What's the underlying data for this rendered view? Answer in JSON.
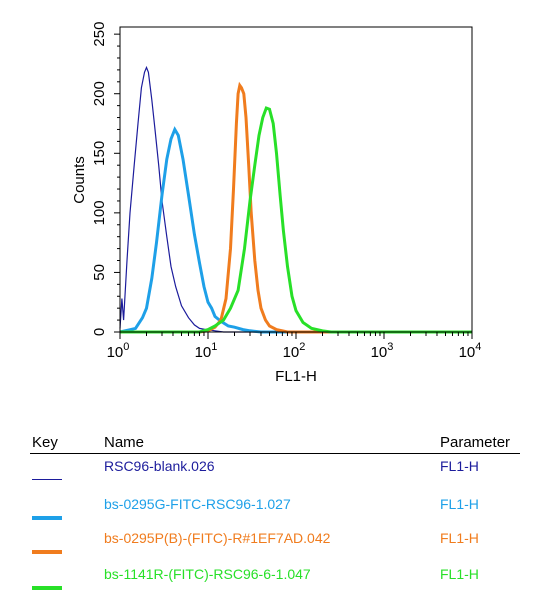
{
  "chart_data": {
    "type": "line",
    "xscale": "log",
    "xlim": [
      1,
      10000
    ],
    "ylim": [
      0,
      256
    ],
    "xlabel": "FL1-H",
    "ylabel": "Counts",
    "xticks": [
      {
        "value": 1,
        "base": "10",
        "exp": "0"
      },
      {
        "value": 10,
        "base": "10",
        "exp": "1"
      },
      {
        "value": 100,
        "base": "10",
        "exp": "2"
      },
      {
        "value": 1000,
        "base": "10",
        "exp": "3"
      },
      {
        "value": 10000,
        "base": "10",
        "exp": "4"
      }
    ],
    "yticks": [
      "0",
      "50",
      "100",
      "150",
      "200",
      "250"
    ],
    "series": [
      {
        "name": "RSC96-blank.026",
        "color": "#1c1c9c",
        "width": 1.2,
        "points": [
          [
            1,
            3
          ],
          [
            1.05,
            28
          ],
          [
            1.1,
            10
          ],
          [
            1.2,
            60
          ],
          [
            1.3,
            100
          ],
          [
            1.45,
            140
          ],
          [
            1.6,
            175
          ],
          [
            1.75,
            205
          ],
          [
            1.9,
            218
          ],
          [
            2.0,
            222
          ],
          [
            2.1,
            218
          ],
          [
            2.3,
            195
          ],
          [
            2.5,
            170
          ],
          [
            2.75,
            140
          ],
          [
            3.0,
            110
          ],
          [
            3.4,
            80
          ],
          [
            3.8,
            55
          ],
          [
            4.3,
            38
          ],
          [
            5.0,
            22
          ],
          [
            6.0,
            12
          ],
          [
            7.0,
            6
          ],
          [
            8.0,
            3
          ],
          [
            9.5,
            2
          ],
          [
            12,
            1
          ],
          [
            15,
            0
          ],
          [
            10000,
            0
          ]
        ]
      },
      {
        "name": "bs-0295G-FITC-RSC96-1.027",
        "color": "#1ea0e8",
        "width": 3,
        "points": [
          [
            1,
            0
          ],
          [
            1.5,
            3
          ],
          [
            1.8,
            12
          ],
          [
            2.0,
            20
          ],
          [
            2.3,
            45
          ],
          [
            2.6,
            75
          ],
          [
            3.0,
            115
          ],
          [
            3.4,
            145
          ],
          [
            3.8,
            162
          ],
          [
            4.2,
            170
          ],
          [
            4.6,
            165
          ],
          [
            5.2,
            145
          ],
          [
            6.0,
            115
          ],
          [
            7.0,
            82
          ],
          [
            8.0,
            58
          ],
          [
            9.0,
            38
          ],
          [
            10,
            25
          ],
          [
            11,
            20
          ],
          [
            12,
            13
          ],
          [
            14,
            9
          ],
          [
            17,
            5
          ],
          [
            20,
            4
          ],
          [
            25,
            2
          ],
          [
            30,
            1
          ],
          [
            40,
            0
          ],
          [
            10000,
            0
          ]
        ]
      },
      {
        "name": "bs-0295P(B)-(FITC)-R#1EF7AD.042",
        "color": "#f07c1e",
        "width": 3,
        "points": [
          [
            1,
            0
          ],
          [
            8,
            0
          ],
          [
            10,
            1
          ],
          [
            12,
            4
          ],
          [
            14,
            10
          ],
          [
            16,
            28
          ],
          [
            18,
            70
          ],
          [
            19.5,
            120
          ],
          [
            21,
            175
          ],
          [
            22,
            200
          ],
          [
            23,
            207
          ],
          [
            24,
            205
          ],
          [
            25.5,
            200
          ],
          [
            27,
            180
          ],
          [
            29,
            140
          ],
          [
            31,
            100
          ],
          [
            34,
            60
          ],
          [
            37,
            35
          ],
          [
            40,
            20
          ],
          [
            45,
            10
          ],
          [
            50,
            5
          ],
          [
            60,
            2
          ],
          [
            70,
            1
          ],
          [
            80,
            0
          ],
          [
            10000,
            0
          ]
        ]
      },
      {
        "name": "bs-1141R-(FITC)-RSC96-6-1.047",
        "color": "#28e028",
        "width": 3,
        "points": [
          [
            1,
            0
          ],
          [
            8,
            0
          ],
          [
            10,
            2
          ],
          [
            12,
            5
          ],
          [
            15,
            10
          ],
          [
            18,
            20
          ],
          [
            22,
            35
          ],
          [
            26,
            70
          ],
          [
            30,
            110
          ],
          [
            34,
            140
          ],
          [
            38,
            165
          ],
          [
            42,
            180
          ],
          [
            46,
            188
          ],
          [
            50,
            187
          ],
          [
            55,
            175
          ],
          [
            60,
            150
          ],
          [
            66,
            115
          ],
          [
            72,
            85
          ],
          [
            80,
            55
          ],
          [
            90,
            30
          ],
          [
            100,
            18
          ],
          [
            120,
            8
          ],
          [
            150,
            3
          ],
          [
            200,
            1
          ],
          [
            250,
            0
          ],
          [
            10000,
            0
          ]
        ]
      }
    ]
  },
  "key_table": {
    "headers": {
      "key": "Key",
      "name": "Name",
      "parameter": "Parameter"
    },
    "rows": [
      {
        "name": "RSC96-blank.026",
        "parameter": "FL1-H",
        "color": "#1c1c9c",
        "swatch_style": "thin"
      },
      {
        "name": "bs-0295G-FITC-RSC96-1.027",
        "parameter": "FL1-H",
        "color": "#1ea0e8",
        "swatch_style": "thick"
      },
      {
        "name": "bs-0295P(B)-(FITC)-R#1EF7AD.042",
        "parameter": "FL1-H",
        "color": "#f07c1e",
        "swatch_style": "thick"
      },
      {
        "name": "bs-1141R-(FITC)-RSC96-6-1.047",
        "parameter": "FL1-H",
        "color": "#28e028",
        "swatch_style": "thick"
      }
    ]
  }
}
